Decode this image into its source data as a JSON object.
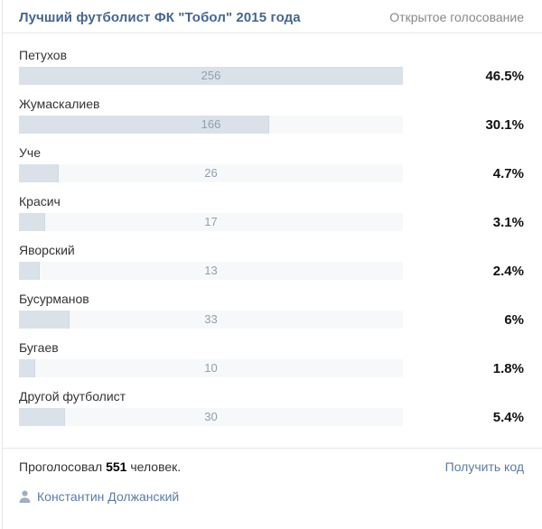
{
  "header": {
    "title": "Лучший футболист ФК \"Тобол\" 2015 года",
    "poll_type": "Открытое голосование"
  },
  "options": [
    {
      "label": "Петухов",
      "votes": 256,
      "percent": "46.5%"
    },
    {
      "label": "Жумаскалиев",
      "votes": 166,
      "percent": "30.1%"
    },
    {
      "label": "Уче",
      "votes": 26,
      "percent": "4.7%"
    },
    {
      "label": "Красич",
      "votes": 17,
      "percent": "3.1%"
    },
    {
      "label": "Яворский",
      "votes": 13,
      "percent": "2.4%"
    },
    {
      "label": "Бусурманов",
      "votes": 33,
      "percent": "6%"
    },
    {
      "label": "Бугаев",
      "votes": 10,
      "percent": "1.8%"
    },
    {
      "label": "Другой футболист",
      "votes": 30,
      "percent": "5.4%"
    }
  ],
  "chart_data": {
    "type": "bar",
    "title": "Лучший футболист ФК \"Тобол\" 2015 года",
    "categories": [
      "Петухов",
      "Жумаскалиев",
      "Уче",
      "Красич",
      "Яворский",
      "Бусурманов",
      "Бугаев",
      "Другой футболист"
    ],
    "values": [
      256,
      166,
      26,
      17,
      13,
      33,
      10,
      30
    ],
    "percent_labels": [
      "46.5%",
      "30.1%",
      "4.7%",
      "3.1%",
      "2.4%",
      "6%",
      "1.8%",
      "5.4%"
    ],
    "max_value": 256,
    "total_votes": 551
  },
  "footer": {
    "votes_prefix": "Проголосовал ",
    "votes_count": "551",
    "votes_suffix": " человек.",
    "get_code_label": "Получить код"
  },
  "author": {
    "icon": "person-icon",
    "name": "Константин Должанский"
  },
  "colors": {
    "title_blue": "#45668e",
    "link_blue": "#5c7ba1",
    "bar_fill": "#dae1e8",
    "bar_track": "#f7f8fa",
    "bar_count_text": "#8fa0b1",
    "muted_gray": "#888888",
    "divider": "#e7e8ec"
  }
}
